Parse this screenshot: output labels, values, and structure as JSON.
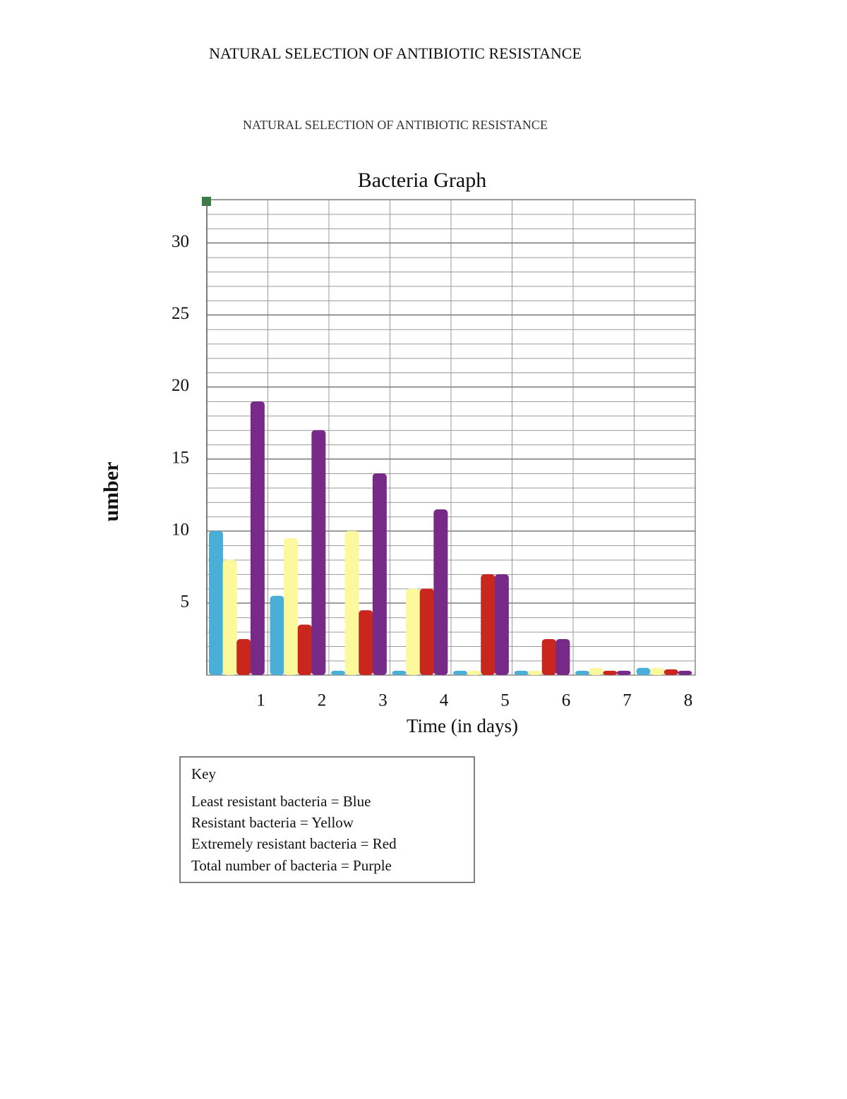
{
  "page_title": "NATURAL SELECTION OF ANTIBIOTIC RESISTANCE",
  "chart_data": {
    "type": "bar",
    "subtitle": "NATURAL SELECTION OF ANTIBIOTIC RESISTANCE",
    "title": "Bacteria Graph",
    "x_label": "Time (in days)",
    "y_label": "umber",
    "categories": [
      1,
      2,
      3,
      4,
      5,
      6,
      7,
      8
    ],
    "series": [
      {
        "color": "#4aaed6",
        "values": [
          10,
          5.5,
          0.3,
          0.3,
          0.3,
          0.3,
          0.3,
          0.5
        ]
      },
      {
        "color": "#fbf99c",
        "values": [
          8,
          9.5,
          10,
          6,
          0.3,
          0.3,
          0.5,
          0.5
        ]
      },
      {
        "color": "#c9261d",
        "values": [
          2.5,
          3.5,
          4.5,
          6,
          7,
          2.5,
          0.3,
          0.4
        ]
      },
      {
        "color": "#782a88",
        "values": [
          19,
          17,
          14,
          11.5,
          7,
          2.5,
          0.3,
          0.3
        ]
      }
    ],
    "ylim": [
      0,
      33
    ],
    "yticks": [
      5,
      10,
      15,
      20,
      25,
      30
    ],
    "grid": true
  },
  "key": {
    "title": "Key",
    "items": [
      "Least resistant bacteria = Blue",
      "Resistant bacteria = Yellow",
      "Extremely resistant bacteria = Red",
      "Total number of bacteria = Purple"
    ]
  }
}
